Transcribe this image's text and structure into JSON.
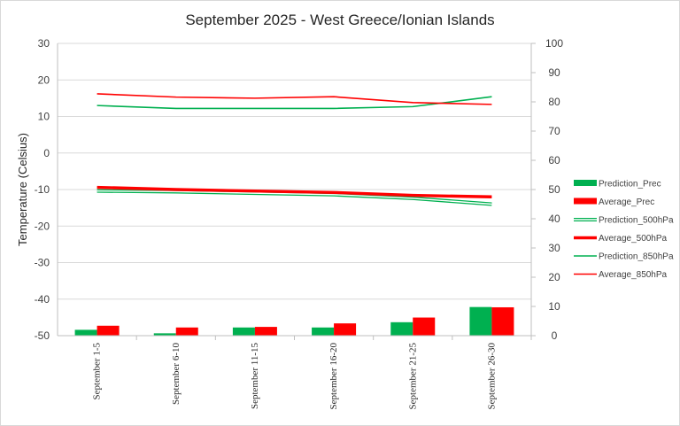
{
  "chart_data": {
    "type": "bar",
    "title": "September 2025 - West Greece/Ionian Islands",
    "ylabel": "Temperature (Celsius)",
    "y2label": "",
    "ylim": [
      -50,
      30
    ],
    "y2lim": [
      0,
      100
    ],
    "yticks": [
      "30",
      "20",
      "10",
      "0",
      "-10",
      "-20",
      "-30",
      "-40",
      "-50"
    ],
    "y2ticks": [
      "100",
      "90",
      "80",
      "70",
      "60",
      "50",
      "40",
      "30",
      "20",
      "10",
      "0"
    ],
    "categories": [
      "September 1-5",
      "September 6-10",
      "September 11-15",
      "September 16-20",
      "September 21-25",
      "September 26-30"
    ],
    "grid": true,
    "legend_position": "right",
    "bar_series": [
      {
        "name": "Prediction_Prec",
        "axis": "right",
        "color": "#00b050",
        "values": [
          2.0,
          0.8,
          2.8,
          2.8,
          4.6,
          9.8
        ]
      },
      {
        "name": "Average_Prec",
        "axis": "right",
        "color": "#ff0000",
        "values": [
          3.4,
          2.8,
          3.0,
          4.2,
          6.2,
          9.7
        ]
      }
    ],
    "line_series": [
      {
        "name": "Prediction_500hPa",
        "axis": "left",
        "color": "#00b050",
        "style": "double",
        "values": [
          -10.4,
          -10.6,
          -11.0,
          -11.4,
          -12.4,
          -14.0
        ]
      },
      {
        "name": "Average_500hPa",
        "axis": "left",
        "color": "#ff0000",
        "style": "thick",
        "values": [
          -9.4,
          -10.0,
          -10.4,
          -10.8,
          -11.6,
          -12.0
        ]
      },
      {
        "name": "Prediction_850hPa",
        "axis": "left",
        "color": "#00b050",
        "style": "thin",
        "values": [
          13.0,
          12.2,
          12.2,
          12.2,
          12.7,
          15.4
        ]
      },
      {
        "name": "Average_850hPa",
        "axis": "left",
        "color": "#ff0000",
        "style": "thin",
        "values": [
          16.2,
          15.3,
          15.0,
          15.4,
          13.8,
          13.3
        ]
      }
    ]
  }
}
